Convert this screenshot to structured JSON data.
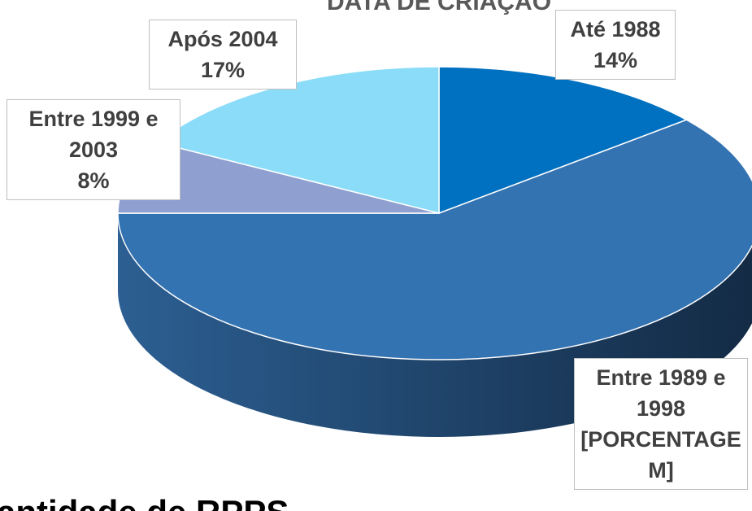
{
  "chart_data": {
    "type": "pie3d",
    "title": "DATA DE CRIAÇÃO",
    "categories": [
      "Até 1988",
      "Entre 1989 e 1998",
      "Entre 1999 e 2003",
      "Após 2004"
    ],
    "values": [
      14,
      61,
      8,
      17
    ],
    "value_labels": [
      "14%",
      "[PORCENTAGEM]",
      "8%",
      "17%"
    ],
    "colors": [
      "#0070c0",
      "#3473b1",
      "#8e9fd0",
      "#8adcf8"
    ],
    "footer": "antidade de RPPS"
  }
}
